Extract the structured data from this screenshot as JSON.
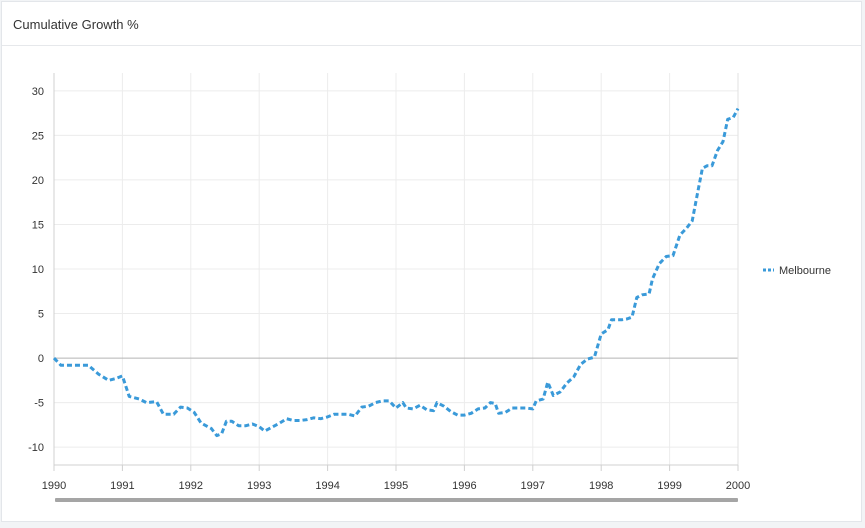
{
  "panel": {
    "title": "Cumulative Growth %"
  },
  "chart_data": {
    "type": "line",
    "title": "",
    "xlabel": "",
    "ylabel": "",
    "xlim": [
      1990,
      2000
    ],
    "ylim": [
      -12,
      32
    ],
    "x_ticks": [
      "1990",
      "1991",
      "1992",
      "1993",
      "1994",
      "1995",
      "1996",
      "1997",
      "1998",
      "1999",
      "2000"
    ],
    "y_ticks": [
      "30",
      "25",
      "20",
      "15",
      "10",
      "5",
      "0",
      "-5",
      "-10"
    ],
    "grid": true,
    "legend_position": "right",
    "series": [
      {
        "name": "Melbourne",
        "color": "#3a9ad9",
        "style": "dashed",
        "points": [
          [
            1990.0,
            0.0
          ],
          [
            1990.1,
            -0.8
          ],
          [
            1990.2,
            -0.8
          ],
          [
            1990.35,
            -0.8
          ],
          [
            1990.5,
            -0.8
          ],
          [
            1990.65,
            -1.8
          ],
          [
            1990.8,
            -2.5
          ],
          [
            1990.9,
            -2.3
          ],
          [
            1991.0,
            -2.0
          ],
          [
            1991.1,
            -4.3
          ],
          [
            1991.25,
            -4.6
          ],
          [
            1991.35,
            -5.0
          ],
          [
            1991.5,
            -4.9
          ],
          [
            1991.6,
            -6.3
          ],
          [
            1991.75,
            -6.3
          ],
          [
            1991.85,
            -5.5
          ],
          [
            1991.95,
            -5.6
          ],
          [
            1992.05,
            -6.1
          ],
          [
            1992.15,
            -7.3
          ],
          [
            1992.3,
            -7.9
          ],
          [
            1992.38,
            -8.7
          ],
          [
            1992.45,
            -8.5
          ],
          [
            1992.52,
            -7.1
          ],
          [
            1992.6,
            -7.1
          ],
          [
            1992.7,
            -7.6
          ],
          [
            1992.8,
            -7.6
          ],
          [
            1992.9,
            -7.4
          ],
          [
            1993.0,
            -7.7
          ],
          [
            1993.08,
            -8.2
          ],
          [
            1993.2,
            -7.7
          ],
          [
            1993.3,
            -7.3
          ],
          [
            1993.4,
            -6.8
          ],
          [
            1993.5,
            -7.0
          ],
          [
            1993.6,
            -7.0
          ],
          [
            1993.7,
            -6.9
          ],
          [
            1993.8,
            -6.7
          ],
          [
            1993.9,
            -6.8
          ],
          [
            1994.0,
            -6.6
          ],
          [
            1994.1,
            -6.3
          ],
          [
            1994.2,
            -6.3
          ],
          [
            1994.3,
            -6.3
          ],
          [
            1994.4,
            -6.5
          ],
          [
            1994.5,
            -5.5
          ],
          [
            1994.6,
            -5.4
          ],
          [
            1994.7,
            -5.0
          ],
          [
            1994.8,
            -4.8
          ],
          [
            1994.9,
            -4.8
          ],
          [
            1995.0,
            -5.6
          ],
          [
            1995.1,
            -5.0
          ],
          [
            1995.15,
            -5.6
          ],
          [
            1995.25,
            -5.7
          ],
          [
            1995.35,
            -5.3
          ],
          [
            1995.45,
            -5.8
          ],
          [
            1995.55,
            -5.9
          ],
          [
            1995.6,
            -5.0
          ],
          [
            1995.7,
            -5.4
          ],
          [
            1995.8,
            -6.0
          ],
          [
            1995.9,
            -6.4
          ],
          [
            1996.0,
            -6.4
          ],
          [
            1996.1,
            -6.2
          ],
          [
            1996.2,
            -5.7
          ],
          [
            1996.3,
            -5.6
          ],
          [
            1996.38,
            -5.0
          ],
          [
            1996.45,
            -5.1
          ],
          [
            1996.5,
            -6.2
          ],
          [
            1996.6,
            -6.1
          ],
          [
            1996.7,
            -5.6
          ],
          [
            1996.8,
            -5.6
          ],
          [
            1996.9,
            -5.6
          ],
          [
            1997.0,
            -5.7
          ],
          [
            1997.05,
            -4.8
          ],
          [
            1997.15,
            -4.6
          ],
          [
            1997.22,
            -2.7
          ],
          [
            1997.3,
            -4.2
          ],
          [
            1997.4,
            -3.8
          ],
          [
            1997.5,
            -2.8
          ],
          [
            1997.6,
            -2.1
          ],
          [
            1997.7,
            -0.7
          ],
          [
            1997.8,
            -0.1
          ],
          [
            1997.9,
            0.1
          ],
          [
            1998.0,
            2.7
          ],
          [
            1998.1,
            3.2
          ],
          [
            1998.15,
            4.3
          ],
          [
            1998.3,
            4.3
          ],
          [
            1998.38,
            4.4
          ],
          [
            1998.45,
            4.6
          ],
          [
            1998.52,
            6.8
          ],
          [
            1998.6,
            7.1
          ],
          [
            1998.7,
            7.2
          ],
          [
            1998.75,
            8.9
          ],
          [
            1998.85,
            10.6
          ],
          [
            1998.95,
            11.4
          ],
          [
            1999.05,
            11.5
          ],
          [
            1999.15,
            13.8
          ],
          [
            1999.25,
            14.6
          ],
          [
            1999.33,
            15.4
          ],
          [
            1999.4,
            18.2
          ],
          [
            1999.48,
            21.3
          ],
          [
            1999.55,
            21.6
          ],
          [
            1999.62,
            21.6
          ],
          [
            1999.7,
            23.3
          ],
          [
            1999.78,
            24.3
          ],
          [
            1999.85,
            26.8
          ],
          [
            1999.93,
            27.0
          ],
          [
            2000.0,
            28.0
          ]
        ]
      }
    ]
  }
}
